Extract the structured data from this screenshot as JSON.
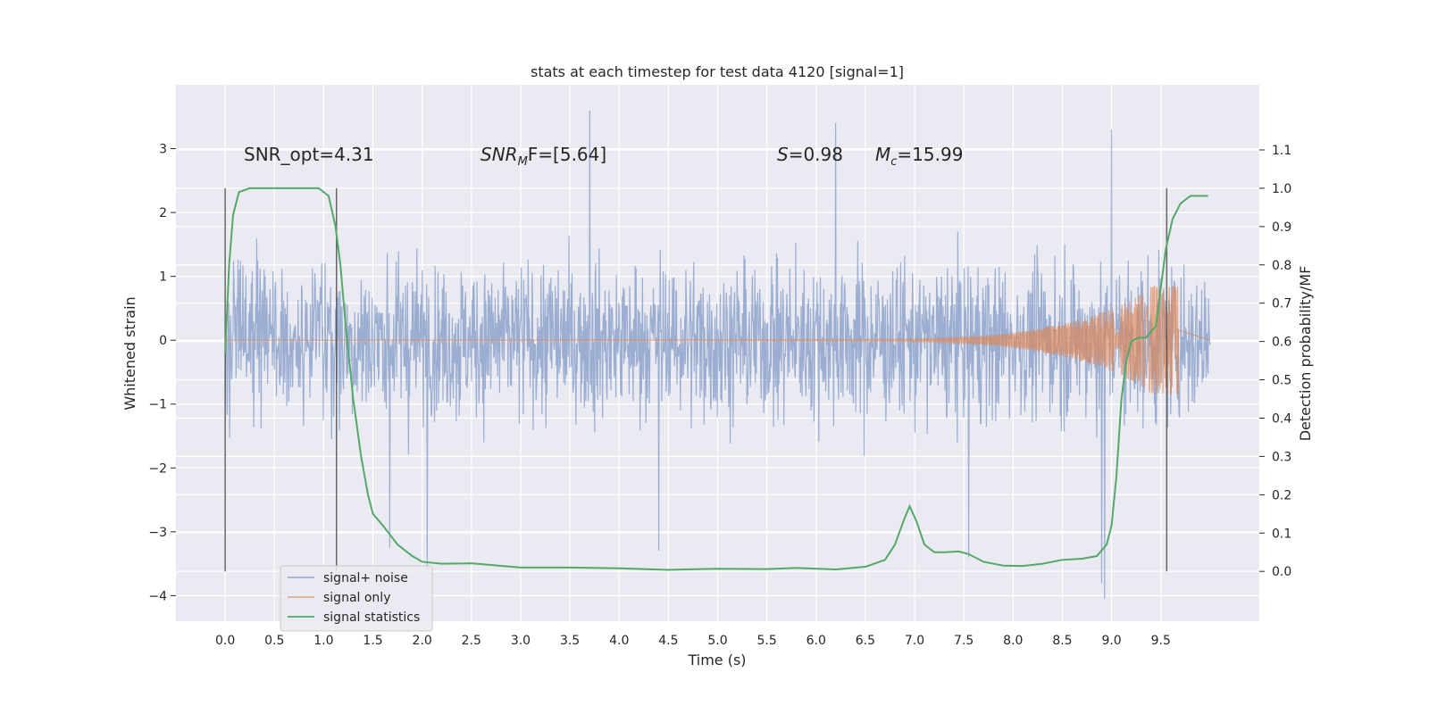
{
  "chart_data": {
    "type": "line",
    "title": "stats at each timestep for test data 4120 [signal=1]",
    "xlabel": "Time (s)",
    "ylabel": "Whitened strain",
    "ylabel_right": "Detection probability/MF",
    "xlim": [
      -0.5,
      10.5
    ],
    "ylim": [
      -4.4,
      4.0
    ],
    "ylim_right": [
      -0.13,
      1.27
    ],
    "xticks": [
      0.0,
      0.5,
      1.0,
      1.5,
      2.0,
      2.5,
      3.0,
      3.5,
      4.0,
      4.5,
      5.0,
      5.5,
      6.0,
      6.5,
      7.0,
      7.5,
      8.0,
      8.5,
      9.0,
      9.5
    ],
    "xtick_labels": [
      "0.0",
      "0.5",
      "1.0",
      "1.5",
      "2.0",
      "2.5",
      "3.0",
      "3.5",
      "4.0",
      "4.5",
      "5.0",
      "5.5",
      "6.0",
      "6.5",
      "7.0",
      "7.5",
      "8.0",
      "8.5",
      "9.0",
      "9.5"
    ],
    "yticks": [
      -4,
      -3,
      -2,
      -1,
      0,
      1,
      2,
      3
    ],
    "ytick_labels": [
      "−4",
      "−3",
      "−2",
      "−1",
      "0",
      "1",
      "2",
      "3"
    ],
    "yticks_right": [
      0.0,
      0.1,
      0.2,
      0.3,
      0.4,
      0.5,
      0.6,
      0.7,
      0.8,
      0.9,
      1.0,
      1.1
    ],
    "ytick_labels_right": [
      "0.0",
      "0.1",
      "0.2",
      "0.3",
      "0.4",
      "0.5",
      "0.6",
      "0.7",
      "0.8",
      "0.9",
      "1.0",
      "1.1"
    ],
    "grid": true,
    "legend_position": "lower-left",
    "annotations": {
      "snr_opt": "SNR_opt=4.31",
      "snr_mf_prefix": "SNR",
      "snr_mf_sub": "M",
      "snr_mf_rest": "F=[5.64]",
      "s_symbol": "S",
      "s_value": "=0.98",
      "mc_symbol": "M",
      "mc_sub": "c",
      "mc_value": "=15.99"
    },
    "vertical_markers": [
      0.0,
      1.13,
      9.56
    ],
    "series": [
      {
        "name": "signal+ noise",
        "color": "#4c72b0",
        "axis": "left",
        "description_values": {
          "x_range": [
            0.0,
            10.0
          ],
          "typical_band": [
            -1.6,
            1.6
          ],
          "peaks": [
            {
              "x": 3.7,
              "y": 3.6
            },
            {
              "x": 6.2,
              "y": 3.4
            },
            {
              "x": 9.0,
              "y": 3.3
            },
            {
              "x": 2.05,
              "y": -3.6
            },
            {
              "x": 8.93,
              "y": -4.05
            },
            {
              "x": 8.9,
              "y": -3.8
            },
            {
              "x": 4.4,
              "y": -3.3
            },
            {
              "x": 7.55,
              "y": -3.4
            },
            {
              "x": 1.67,
              "y": -3.25
            }
          ]
        }
      },
      {
        "name": "signal only",
        "color": "#dd8452",
        "axis": "left",
        "chirp": {
          "start": 0.0,
          "end": 9.68,
          "final_amplitude": 0.85,
          "grow_start": 6.5
        }
      },
      {
        "name": "signal statistics",
        "color": "#55a868",
        "axis": "right",
        "x": [
          0.0,
          0.04,
          0.08,
          0.14,
          0.25,
          0.4,
          0.6,
          0.8,
          0.95,
          1.05,
          1.12,
          1.17,
          1.22,
          1.3,
          1.38,
          1.45,
          1.5,
          1.6,
          1.75,
          1.9,
          2.0,
          2.2,
          2.5,
          3.0,
          3.5,
          4.0,
          4.5,
          5.0,
          5.5,
          5.8,
          6.2,
          6.5,
          6.7,
          6.8,
          6.9,
          6.95,
          7.02,
          7.1,
          7.2,
          7.3,
          7.45,
          7.55,
          7.7,
          7.9,
          8.1,
          8.3,
          8.5,
          8.7,
          8.85,
          8.95,
          9.0,
          9.05,
          9.1,
          9.15,
          9.2,
          9.27,
          9.35,
          9.45,
          9.55,
          9.62,
          9.7,
          9.8,
          9.9,
          9.98
        ],
        "values": [
          0.57,
          0.8,
          0.93,
          0.99,
          1.0,
          1.0,
          1.0,
          1.0,
          1.0,
          0.98,
          0.9,
          0.8,
          0.65,
          0.45,
          0.3,
          0.2,
          0.15,
          0.12,
          0.07,
          0.04,
          0.025,
          0.02,
          0.021,
          0.01,
          0.01,
          0.008,
          0.004,
          0.007,
          0.006,
          0.009,
          0.005,
          0.012,
          0.03,
          0.07,
          0.14,
          0.17,
          0.13,
          0.07,
          0.05,
          0.05,
          0.052,
          0.045,
          0.025,
          0.015,
          0.014,
          0.02,
          0.03,
          0.033,
          0.04,
          0.07,
          0.12,
          0.25,
          0.45,
          0.55,
          0.6,
          0.61,
          0.61,
          0.64,
          0.84,
          0.92,
          0.96,
          0.98,
          0.98,
          0.98
        ]
      }
    ]
  }
}
